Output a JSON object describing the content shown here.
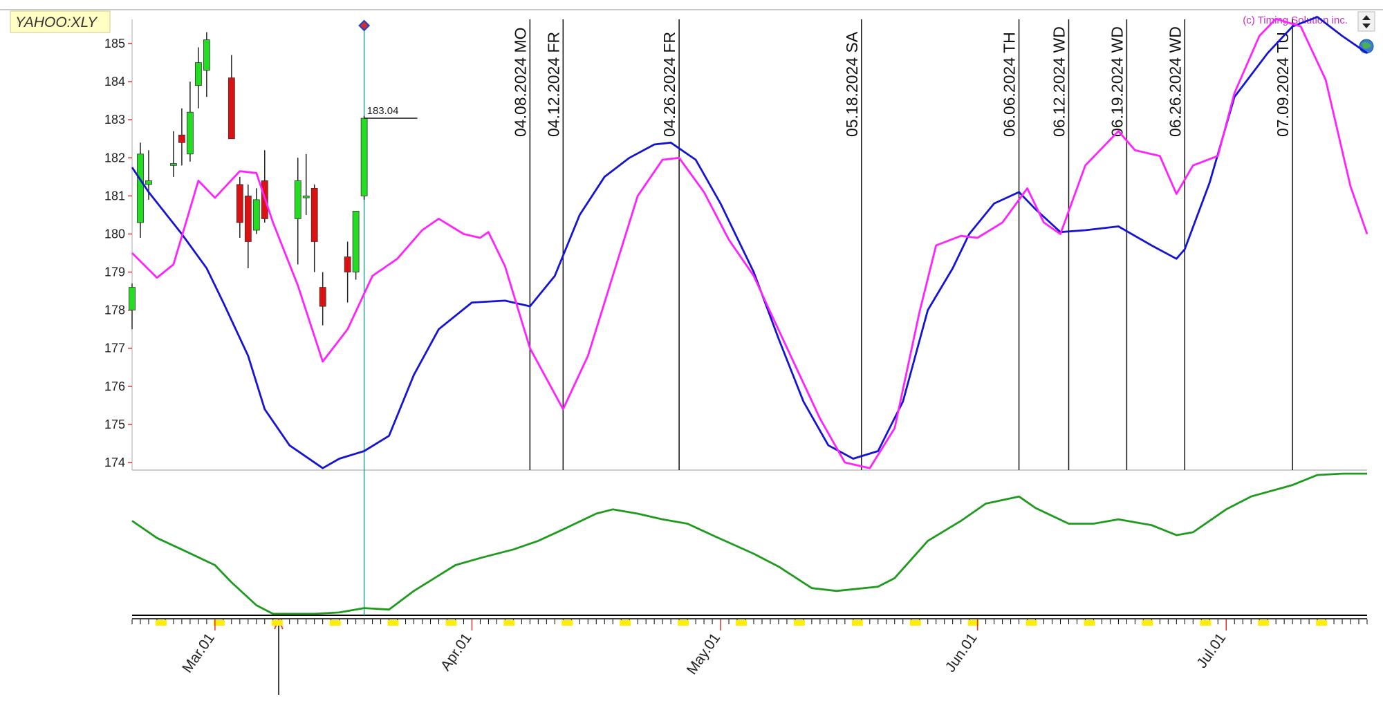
{
  "chart_data": {
    "type": "candlestick",
    "title": "YAHOO:XLY",
    "credit": "(c) Timing Solution inc.",
    "xlim": [
      "2024-02-20",
      "2024-07-18"
    ],
    "xticks": [
      {
        "value": "2024-03-01",
        "label": "Mar.01"
      },
      {
        "value": "2024-04-01",
        "label": "Apr.01"
      },
      {
        "value": "2024-05-01",
        "label": "May.01"
      },
      {
        "value": "2024-06-01",
        "label": "Jun.01"
      },
      {
        "value": "2024-07-01",
        "label": "Jul.01"
      }
    ],
    "ylim": [
      173.8,
      185.6
    ],
    "yticks": [
      174,
      175,
      176,
      177,
      178,
      179,
      180,
      181,
      182,
      183,
      184,
      185
    ],
    "candles": {
      "x": [
        "2024-02-20",
        "2024-02-21",
        "2024-02-22",
        "2024-02-25",
        "2024-02-26",
        "2024-02-27",
        "2024-02-28",
        "2024-02-29",
        "2024-03-03",
        "2024-03-04",
        "2024-03-05",
        "2024-03-06",
        "2024-03-07",
        "2024-03-11",
        "2024-03-12",
        "2024-03-13",
        "2024-03-14",
        "2024-03-17",
        "2024-03-18",
        "2024-03-19"
      ],
      "open": [
        178.0,
        180.3,
        181.3,
        181.8,
        182.6,
        182.1,
        183.9,
        184.3,
        184.1,
        181.3,
        181.0,
        180.1,
        181.4,
        180.4,
        180.95,
        181.2,
        178.6,
        179.4,
        179.0,
        181.0
      ],
      "high": [
        178.7,
        182.4,
        182.2,
        182.7,
        183.3,
        184.0,
        184.9,
        185.3,
        184.7,
        181.5,
        181.3,
        181.2,
        182.2,
        182.0,
        182.1,
        181.3,
        179.0,
        179.8,
        180.6,
        183.1
      ],
      "low": [
        177.5,
        179.9,
        180.9,
        181.5,
        181.8,
        181.9,
        183.3,
        183.6,
        182.5,
        179.9,
        179.1,
        180.0,
        180.3,
        179.2,
        180.5,
        179.0,
        177.6,
        178.2,
        178.8,
        180.9
      ],
      "close": [
        178.6,
        182.1,
        181.4,
        181.85,
        182.4,
        183.2,
        184.5,
        185.1,
        182.5,
        180.3,
        179.8,
        180.9,
        180.4,
        181.4,
        181.0,
        179.8,
        178.1,
        179.0,
        180.6,
        183.04
      ],
      "up_color": "#22dd22",
      "down_color": "#dd1111"
    },
    "price_label": 183.04,
    "cursor": "2024-03-19",
    "series": [
      {
        "color": "#1414d2",
        "x": [
          "2024-02-20",
          "2024-02-22",
          "2024-02-26",
          "2024-02-29",
          "2024-03-02",
          "2024-03-05",
          "2024-03-07",
          "2024-03-10",
          "2024-03-14",
          "2024-03-16",
          "2024-03-19",
          "2024-03-22",
          "2024-03-25",
          "2024-03-28",
          "2024-04-01",
          "2024-04-05",
          "2024-04-08",
          "2024-04-11",
          "2024-04-14",
          "2024-04-17",
          "2024-04-20",
          "2024-04-23",
          "2024-04-25",
          "2024-04-28",
          "2024-05-01",
          "2024-05-05",
          "2024-05-08",
          "2024-05-11",
          "2024-05-14",
          "2024-05-17",
          "2024-05-20",
          "2024-05-23",
          "2024-05-26",
          "2024-05-29",
          "2024-05-31",
          "2024-06-03",
          "2024-06-06",
          "2024-06-08",
          "2024-06-11",
          "2024-06-14",
          "2024-06-18",
          "2024-06-22",
          "2024-06-25",
          "2024-06-26",
          "2024-06-29",
          "2024-07-02",
          "2024-07-06",
          "2024-07-09",
          "2024-07-12",
          "2024-07-15",
          "2024-07-18"
        ],
        "values": [
          181.75,
          181.1,
          180.0,
          179.1,
          178.2,
          176.8,
          175.4,
          174.45,
          173.85,
          174.1,
          174.3,
          174.7,
          176.3,
          177.5,
          178.2,
          178.25,
          178.1,
          178.9,
          180.5,
          181.5,
          182.0,
          182.35,
          182.4,
          181.95,
          180.8,
          179.0,
          177.25,
          175.6,
          174.45,
          174.1,
          174.3,
          175.6,
          178.0,
          179.1,
          180.0,
          180.8,
          181.1,
          180.65,
          180.05,
          180.1,
          180.2,
          179.7,
          179.35,
          179.6,
          181.35,
          183.6,
          184.75,
          185.45,
          185.7,
          185.2,
          184.75
        ]
      },
      {
        "color": "#ff22ff",
        "x": [
          "2024-02-20",
          "2024-02-23",
          "2024-02-25",
          "2024-02-28",
          "2024-03-01",
          "2024-03-04",
          "2024-03-06",
          "2024-03-08",
          "2024-03-11",
          "2024-03-14",
          "2024-03-17",
          "2024-03-20",
          "2024-03-23",
          "2024-03-26",
          "2024-03-28",
          "2024-03-31",
          "2024-04-02",
          "2024-04-03",
          "2024-04-05",
          "2024-04-08",
          "2024-04-12",
          "2024-04-15",
          "2024-04-18",
          "2024-04-21",
          "2024-04-24",
          "2024-04-26",
          "2024-04-29",
          "2024-05-02",
          "2024-05-05",
          "2024-05-07",
          "2024-05-10",
          "2024-05-13",
          "2024-05-16",
          "2024-05-19",
          "2024-05-22",
          "2024-05-25",
          "2024-05-27",
          "2024-05-30",
          "2024-06-01",
          "2024-06-04",
          "2024-06-07",
          "2024-06-09",
          "2024-06-11",
          "2024-06-14",
          "2024-06-18",
          "2024-06-20",
          "2024-06-23",
          "2024-06-25",
          "2024-06-27",
          "2024-06-30",
          "2024-07-02",
          "2024-07-05",
          "2024-07-07",
          "2024-07-10",
          "2024-07-13",
          "2024-07-16",
          "2024-07-18"
        ],
        "values": [
          179.5,
          178.85,
          179.2,
          181.4,
          180.95,
          181.65,
          181.6,
          180.3,
          178.65,
          176.65,
          177.5,
          178.9,
          179.35,
          180.1,
          180.4,
          180.0,
          179.9,
          180.05,
          179.15,
          177.0,
          175.4,
          176.8,
          178.9,
          181.0,
          181.95,
          182.0,
          181.1,
          179.85,
          178.9,
          177.95,
          176.55,
          175.15,
          174.0,
          173.85,
          174.9,
          177.95,
          179.7,
          179.95,
          179.9,
          180.3,
          181.2,
          180.3,
          180.0,
          181.8,
          182.7,
          182.2,
          182.05,
          181.05,
          181.8,
          182.05,
          183.7,
          185.2,
          185.65,
          185.45,
          184.05,
          181.25,
          180.0
        ]
      }
    ],
    "panel2": {
      "ylim": [
        0,
        100
      ],
      "series": [
        {
          "color": "#1e9a1e",
          "x": [
            "2024-02-20",
            "2024-02-23",
            "2024-02-26",
            "2024-03-01",
            "2024-03-03",
            "2024-03-06",
            "2024-03-08",
            "2024-03-13",
            "2024-03-16",
            "2024-03-19",
            "2024-03-22",
            "2024-03-25",
            "2024-03-30",
            "2024-04-02",
            "2024-04-06",
            "2024-04-09",
            "2024-04-12",
            "2024-04-16",
            "2024-04-18",
            "2024-04-21",
            "2024-04-24",
            "2024-04-27",
            "2024-04-30",
            "2024-05-05",
            "2024-05-08",
            "2024-05-12",
            "2024-05-15",
            "2024-05-20",
            "2024-05-22",
            "2024-05-26",
            "2024-05-30",
            "2024-06-02",
            "2024-06-06",
            "2024-06-08",
            "2024-06-12",
            "2024-06-15",
            "2024-06-18",
            "2024-06-22",
            "2024-06-25",
            "2024-06-27",
            "2024-07-01",
            "2024-07-04",
            "2024-07-09",
            "2024-07-12",
            "2024-07-15",
            "2024-07-18"
          ],
          "values": [
            66,
            54,
            46,
            35,
            23,
            7,
            1,
            1,
            2,
            5,
            4,
            17,
            35,
            40,
            46,
            52,
            60,
            71,
            74,
            71,
            67,
            64,
            56,
            43,
            34,
            19,
            17,
            20,
            26,
            52,
            66,
            78,
            83,
            75,
            64,
            64,
            67,
            63,
            56,
            58,
            74,
            83,
            91,
            98,
            99,
            99
          ]
        }
      ]
    },
    "events": [
      {
        "date": "2024-04-08",
        "label": "04.08.2024 MO"
      },
      {
        "date": "2024-04-12",
        "label": "04.12.2024 FR"
      },
      {
        "date": "2024-04-26",
        "label": "04.26.2024 FR"
      },
      {
        "date": "2024-05-18",
        "label": "05.18.2024 SA"
      },
      {
        "date": "2024-06-06",
        "label": "06.06.2024 TH"
      },
      {
        "date": "2024-06-12",
        "label": "06.12.2024 WD"
      },
      {
        "date": "2024-06-19",
        "label": "06.19.2024 WD"
      },
      {
        "date": "2024-06-26",
        "label": "06.26.2024 WD"
      },
      {
        "date": "2024-07-09",
        "label": "07.09.2024 TU"
      }
    ]
  }
}
